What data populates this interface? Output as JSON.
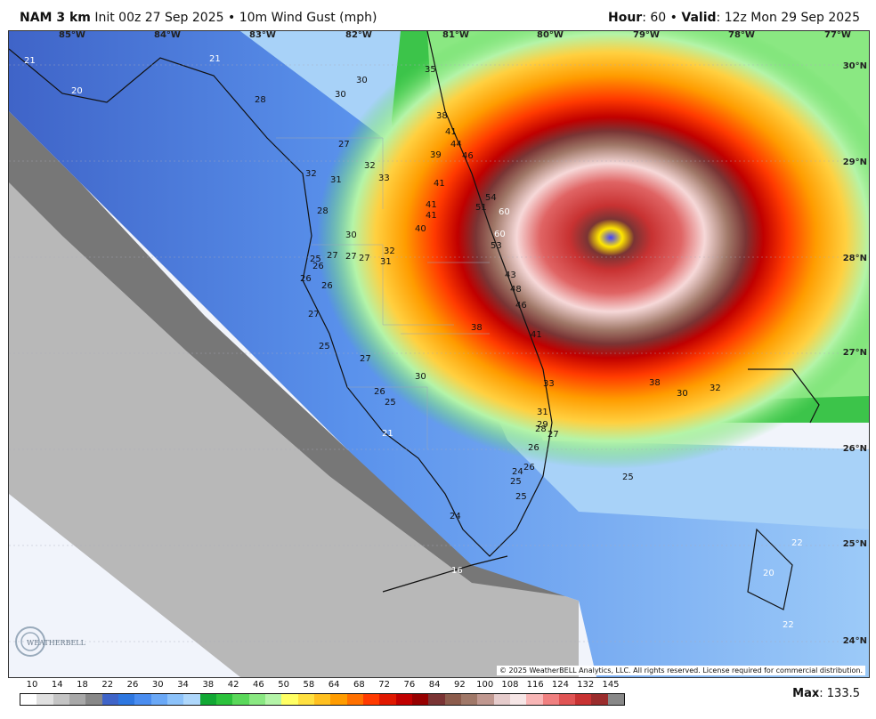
{
  "header": {
    "model": "NAM 3 km",
    "init": "Init 00z 27 Sep 2025",
    "field": "10m Wind Gust (mph)",
    "hour_label": "Hour",
    "hour": "60",
    "valid_label": "Valid",
    "valid": "12z Mon 29 Sep 2025"
  },
  "map": {
    "lon_labels": [
      "85°W",
      "84°W",
      "83°W",
      "82°W",
      "81°W",
      "80°W",
      "79°W",
      "78°W",
      "77°W"
    ],
    "lat_labels": [
      "30°N",
      "29°N",
      "28°N",
      "27°N",
      "26°N",
      "25°N",
      "24°N"
    ],
    "values": [
      {
        "t": "21",
        "c": "w"
      },
      {
        "t": "20",
        "c": "w"
      },
      {
        "t": "21",
        "c": "w"
      },
      {
        "t": "28",
        "c": "b"
      },
      {
        "t": "30",
        "c": "b"
      },
      {
        "t": "30",
        "c": "b"
      },
      {
        "t": "35",
        "c": "b"
      },
      {
        "t": "38",
        "c": "b"
      },
      {
        "t": "41",
        "c": "b"
      },
      {
        "t": "44",
        "c": "b"
      },
      {
        "t": "46",
        "c": "b"
      },
      {
        "t": "39",
        "c": "b"
      },
      {
        "t": "27",
        "c": "b"
      },
      {
        "t": "32",
        "c": "b"
      },
      {
        "t": "32",
        "c": "b"
      },
      {
        "t": "31",
        "c": "b"
      },
      {
        "t": "33",
        "c": "b"
      },
      {
        "t": "41",
        "c": "b"
      },
      {
        "t": "54",
        "c": "b"
      },
      {
        "t": "51",
        "c": "b"
      },
      {
        "t": "60",
        "c": "w"
      },
      {
        "t": "41",
        "c": "b"
      },
      {
        "t": "41",
        "c": "b"
      },
      {
        "t": "28",
        "c": "b"
      },
      {
        "t": "40",
        "c": "b"
      },
      {
        "t": "30",
        "c": "b"
      },
      {
        "t": "60",
        "c": "w"
      },
      {
        "t": "53",
        "c": "b"
      },
      {
        "t": "32",
        "c": "b"
      },
      {
        "t": "27",
        "c": "b"
      },
      {
        "t": "27",
        "c": "b"
      },
      {
        "t": "27",
        "c": "b"
      },
      {
        "t": "25",
        "c": "b"
      },
      {
        "t": "31",
        "c": "b"
      },
      {
        "t": "26",
        "c": "b"
      },
      {
        "t": "43",
        "c": "b"
      },
      {
        "t": "26",
        "c": "b"
      },
      {
        "t": "26",
        "c": "b"
      },
      {
        "t": "48",
        "c": "b"
      },
      {
        "t": "46",
        "c": "b"
      },
      {
        "t": "27",
        "c": "b"
      },
      {
        "t": "38",
        "c": "b"
      },
      {
        "t": "41",
        "c": "b"
      },
      {
        "t": "25",
        "c": "b"
      },
      {
        "t": "27",
        "c": "b"
      },
      {
        "t": "30",
        "c": "b"
      },
      {
        "t": "33",
        "c": "b"
      },
      {
        "t": "38",
        "c": "b"
      },
      {
        "t": "30",
        "c": "b"
      },
      {
        "t": "32",
        "c": "b"
      },
      {
        "t": "26",
        "c": "b"
      },
      {
        "t": "25",
        "c": "b"
      },
      {
        "t": "31",
        "c": "b"
      },
      {
        "t": "29",
        "c": "b"
      },
      {
        "t": "28",
        "c": "b"
      },
      {
        "t": "21",
        "c": "w"
      },
      {
        "t": "27",
        "c": "b"
      },
      {
        "t": "26",
        "c": "b"
      },
      {
        "t": "26",
        "c": "b"
      },
      {
        "t": "25",
        "c": "b"
      },
      {
        "t": "24",
        "c": "b"
      },
      {
        "t": "25",
        "c": "b"
      },
      {
        "t": "25",
        "c": "b"
      },
      {
        "t": "24",
        "c": "b"
      },
      {
        "t": "22",
        "c": "w"
      },
      {
        "t": "16",
        "c": "w"
      },
      {
        "t": "20",
        "c": "w"
      },
      {
        "t": "22",
        "c": "w"
      }
    ],
    "copyright": "© 2025 WeatherBELL Analytics, LLC. All rights reserved. License required for commercial distribution.",
    "logo_text": "WEATHERBELL"
  },
  "legend": {
    "labels": [
      "10",
      "14",
      "18",
      "22",
      "26",
      "30",
      "34",
      "38",
      "42",
      "46",
      "50",
      "58",
      "64",
      "68",
      "72",
      "76",
      "84",
      "92",
      "100",
      "108",
      "116",
      "124",
      "132",
      "145"
    ],
    "colors": [
      "#ffffff",
      "#e0e0e0",
      "#c4c4c4",
      "#a8a8a8",
      "#888888",
      "#3f64c8",
      "#2e77e0",
      "#4a8df0",
      "#6aa8f6",
      "#8cc2fa",
      "#aed7fb",
      "#12a834",
      "#2cc23c",
      "#5ad85a",
      "#8ae882",
      "#b4f4a8",
      "#ffff64",
      "#ffe040",
      "#ffc020",
      "#ff9c00",
      "#ff7000",
      "#ff3a00",
      "#e01800",
      "#c00000",
      "#960000",
      "#7a3434",
      "#8c5c4c",
      "#a07868",
      "#c09890",
      "#e6cccc",
      "#f6e6e6",
      "#f8b6b6",
      "#f08080",
      "#e05454",
      "#c83232",
      "#9a2c2c",
      "#888888"
    ]
  },
  "max": {
    "label": "Max",
    "value": "133.5"
  }
}
